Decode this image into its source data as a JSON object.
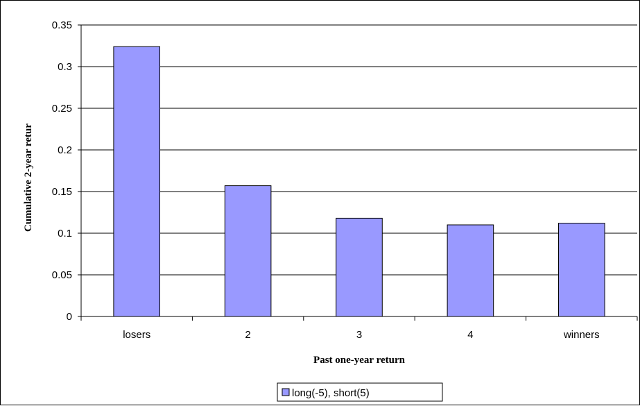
{
  "chart_data": {
    "type": "bar",
    "categories": [
      "losers",
      "2",
      "3",
      "4",
      "winners"
    ],
    "series": [
      {
        "name": "long(-5), short(5)",
        "values": [
          0.324,
          0.157,
          0.118,
          0.11,
          0.112
        ]
      }
    ],
    "xlabel": "Past one-year return",
    "ylabel": "Cumulative 2-year retur",
    "ylim": [
      0,
      0.35
    ],
    "yticks": [
      "0",
      "0.05",
      "0.1",
      "0.15",
      "0.2",
      "0.25",
      "0.3",
      "0.35"
    ],
    "grid": true,
    "legend_position": "bottom",
    "colors": {
      "bar_fill": "#9999ff",
      "bar_stroke": "#000000",
      "grid": "#000000"
    }
  }
}
